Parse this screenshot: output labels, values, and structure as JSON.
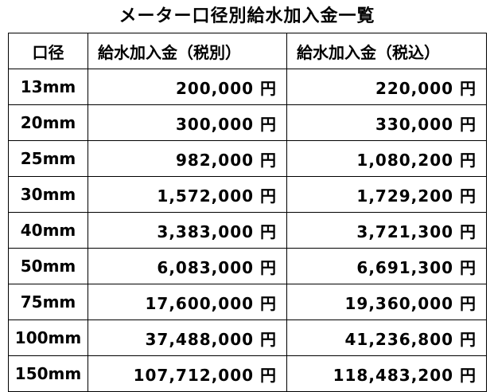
{
  "title": "メーター口径別給水加入金一覧",
  "headers": [
    "口径",
    "給水加入金（税別）",
    "給水加入金（税込）"
  ],
  "rows": [
    {
      "size": "13mm",
      "excl": "200,000 円",
      "incl": "220,000 円"
    },
    {
      "size": "20mm",
      "excl": "300,000 円",
      "incl": "330,000 円"
    },
    {
      "size": "25mm",
      "excl": "982,000 円",
      "incl": "1,080,200 円"
    },
    {
      "size": "30mm",
      "excl": "1,572,000 円",
      "incl": "1,729,200 円"
    },
    {
      "size": "40mm",
      "excl": "3,383,000 円",
      "incl": "3,721,300 円"
    },
    {
      "size": "50mm",
      "excl": "6,083,000 円",
      "incl": "6,691,300 円"
    },
    {
      "size": "75mm",
      "excl": "17,600,000 円",
      "incl": "19,360,000 円"
    },
    {
      "size": "100mm",
      "excl": "37,488,000 円",
      "incl": "41,236,800 円"
    },
    {
      "size": "150mm",
      "excl": "107,712,000 円",
      "incl": "118,483,200 円"
    }
  ]
}
